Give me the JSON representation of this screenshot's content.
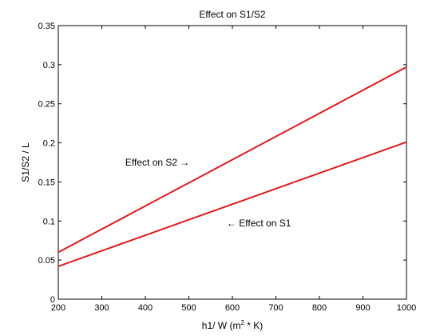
{
  "chart_data": {
    "type": "line",
    "title": "Effect on S1/S2",
    "xlabel": "h1/ W (m² * K)",
    "xlabel_parts": {
      "before": "h1/ W (m",
      "sup": "2",
      "after": " * K)"
    },
    "ylabel": "S1/S2 / L",
    "xlim": [
      200,
      1000
    ],
    "ylim": [
      0,
      0.35
    ],
    "xticks": [
      200,
      300,
      400,
      500,
      600,
      700,
      800,
      900,
      1000
    ],
    "yticks": [
      0,
      0.05,
      0.1,
      0.15,
      0.2,
      0.25,
      0.3,
      0.35
    ],
    "xtick_labels": [
      "200",
      "300",
      "400",
      "500",
      "600",
      "700",
      "800",
      "900",
      "1000"
    ],
    "ytick_labels": [
      "0",
      "0.05",
      "0.1",
      "0.15",
      "0.2",
      "0.25",
      "0.3",
      "0.35"
    ],
    "grid": false,
    "line_color": "#e31a1c",
    "series": [
      {
        "id": "s2",
        "x": [
          200,
          1000
        ],
        "y": [
          0.06,
          0.297
        ]
      },
      {
        "id": "s1",
        "x": [
          200,
          1000
        ],
        "y": [
          0.042,
          0.201
        ]
      }
    ],
    "annotations": [
      {
        "id": "s2",
        "text": "Effect on S2 →",
        "x": 354,
        "y": 0.175,
        "anchor": "start"
      },
      {
        "id": "s1",
        "text": "← Effect on S1",
        "x": 587,
        "y": 0.097,
        "anchor": "start"
      }
    ]
  }
}
